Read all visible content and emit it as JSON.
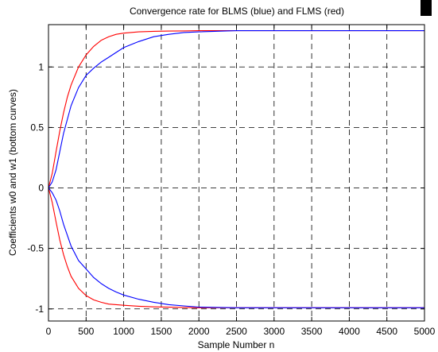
{
  "chart_data": {
    "type": "line",
    "title": "Convergence rate for BLMS (blue) and FLMS (red)",
    "xlabel": "Sample Number n",
    "ylabel": "Coefficients w0 and w1 (bottom curves)",
    "xlim": [
      0,
      5000
    ],
    "ylim": [
      -1.1,
      1.35
    ],
    "xticks": [
      0,
      500,
      1000,
      1500,
      2000,
      2500,
      3000,
      3500,
      4000,
      4500,
      5000
    ],
    "yticks": [
      -1,
      -0.5,
      0,
      0.5,
      1
    ],
    "grid": true,
    "colors": {
      "blue": "#0000ff",
      "red": "#ff0000"
    },
    "series": [
      {
        "color": "#ff0000",
        "x": [
          0,
          50,
          100,
          150,
          200,
          250,
          300,
          400,
          500,
          600,
          700,
          800,
          900,
          1000,
          1200,
          1400,
          1600,
          1800,
          2000,
          2500,
          3000,
          3500,
          4000,
          4500,
          5000
        ],
        "values": [
          0,
          0.12,
          0.3,
          0.47,
          0.62,
          0.75,
          0.85,
          1.0,
          1.1,
          1.17,
          1.22,
          1.25,
          1.27,
          1.28,
          1.29,
          1.295,
          1.297,
          1.298,
          1.3,
          1.3,
          1.3,
          1.3,
          1.3,
          1.3,
          1.3
        ]
      },
      {
        "color": "#0000ff",
        "x": [
          0,
          50,
          100,
          150,
          200,
          300,
          400,
          500,
          600,
          700,
          800,
          900,
          1000,
          1200,
          1400,
          1600,
          1800,
          2000,
          2500,
          3000,
          3500,
          4000,
          4500,
          5000
        ],
        "values": [
          0,
          0.05,
          0.15,
          0.3,
          0.45,
          0.68,
          0.83,
          0.93,
          0.99,
          1.04,
          1.08,
          1.12,
          1.16,
          1.21,
          1.25,
          1.27,
          1.285,
          1.29,
          1.3,
          1.3,
          1.3,
          1.3,
          1.3,
          1.3
        ]
      },
      {
        "color": "#ff0000",
        "x": [
          0,
          50,
          100,
          150,
          200,
          250,
          300,
          400,
          500,
          600,
          700,
          800,
          900,
          1000,
          1200,
          1400,
          1600,
          1800,
          2000,
          2500,
          3000,
          3500,
          4000,
          4500,
          5000
        ],
        "values": [
          0,
          -0.12,
          -0.28,
          -0.43,
          -0.55,
          -0.65,
          -0.73,
          -0.83,
          -0.89,
          -0.925,
          -0.945,
          -0.96,
          -0.965,
          -0.97,
          -0.978,
          -0.983,
          -0.986,
          -0.988,
          -0.99,
          -0.99,
          -0.99,
          -0.99,
          -0.99,
          -0.99,
          -0.99
        ]
      },
      {
        "color": "#0000ff",
        "x": [
          0,
          50,
          100,
          150,
          200,
          300,
          400,
          500,
          600,
          700,
          800,
          900,
          1000,
          1200,
          1400,
          1600,
          1800,
          2000,
          2500,
          3000,
          3500,
          4000,
          4500,
          5000
        ],
        "values": [
          0,
          -0.04,
          -0.1,
          -0.19,
          -0.3,
          -0.48,
          -0.6,
          -0.67,
          -0.74,
          -0.79,
          -0.83,
          -0.86,
          -0.885,
          -0.92,
          -0.945,
          -0.965,
          -0.975,
          -0.985,
          -0.99,
          -0.99,
          -0.99,
          -0.99,
          -0.99,
          -0.99
        ]
      }
    ]
  }
}
